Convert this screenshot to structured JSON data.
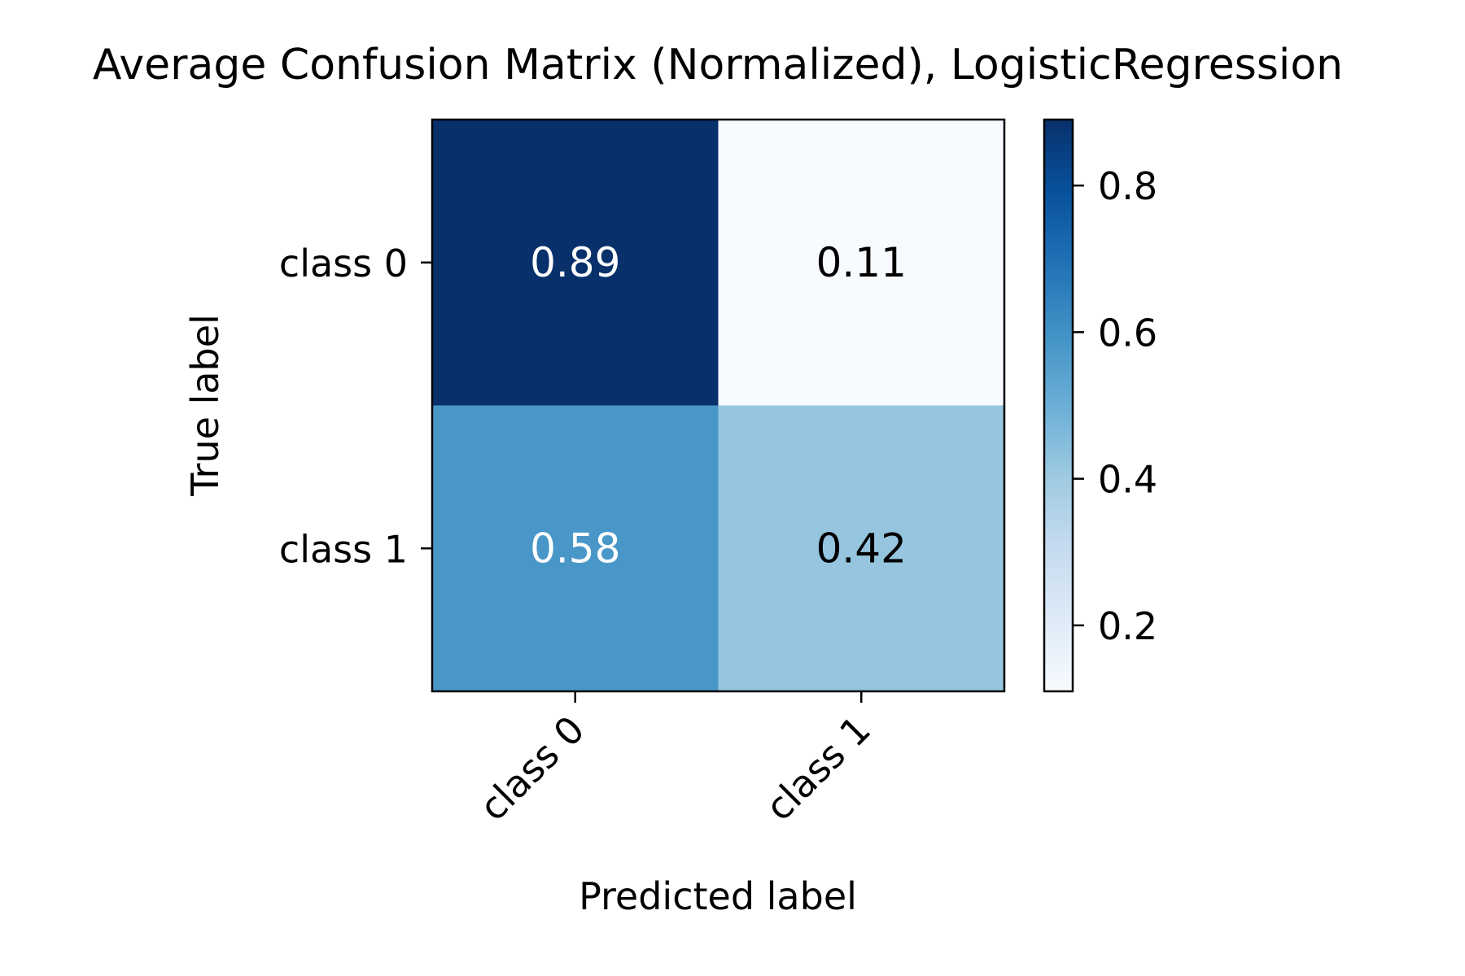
{
  "chart_data": {
    "type": "heatmap",
    "title": "Average Confusion Matrix (Normalized), LogisticRegression",
    "xlabel": "Predicted label",
    "ylabel": "True label",
    "x_categories": [
      "class 0",
      "class 1"
    ],
    "y_categories": [
      "class 0",
      "class 1"
    ],
    "values": [
      [
        0.89,
        0.11
      ],
      [
        0.58,
        0.42
      ]
    ],
    "cell_labels": [
      [
        "0.89",
        "0.11"
      ],
      [
        "0.58",
        "0.42"
      ]
    ],
    "colormap": "Blues",
    "colorbar": {
      "range": [
        0.11,
        0.89
      ],
      "ticks": [
        0.2,
        0.4,
        0.6,
        0.8
      ],
      "tick_labels": [
        "0.2",
        "0.4",
        "0.6",
        "0.8"
      ]
    },
    "colors": {
      "dark_text": "#000000",
      "light_text": "#ffffff"
    }
  }
}
